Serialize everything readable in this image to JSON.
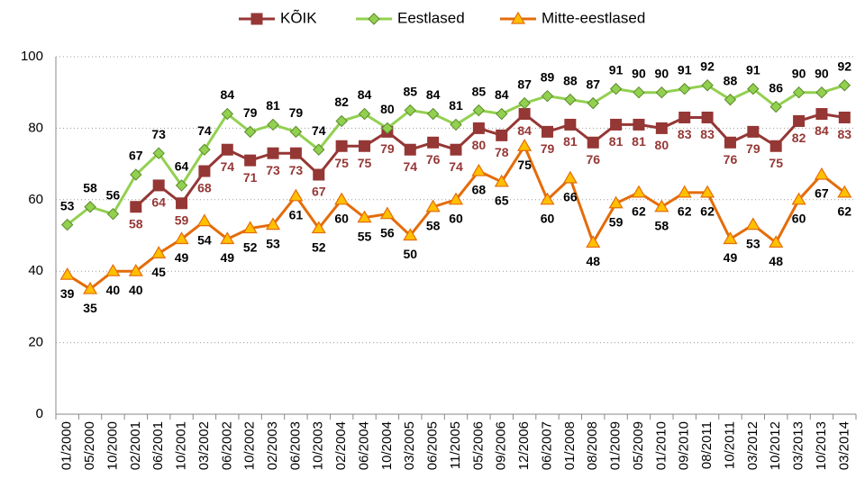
{
  "chart_data": {
    "type": "line",
    "categories": [
      "01/2000",
      "05/2000",
      "10/2000",
      "02/2001",
      "06/2001",
      "10/2001",
      "03/2002",
      "06/2002",
      "10/2002",
      "02/2003",
      "06/2003",
      "10/2003",
      "02/2004",
      "06/2004",
      "10/2004",
      "03/2005",
      "06/2005",
      "11/2005",
      "05/2006",
      "09/2006",
      "12/2006",
      "06/2007",
      "01/2008",
      "08/2008",
      "01/2009",
      "05/2009",
      "01/2010",
      "09/2010",
      "08/2011",
      "10/2011",
      "03/2012",
      "10/2012",
      "03/2013",
      "10/2013",
      "03/2014"
    ],
    "series": [
      {
        "name": "KÕIK",
        "color": "#953735",
        "marker": "square",
        "values": [
          null,
          null,
          null,
          58,
          64,
          59,
          68,
          74,
          71,
          73,
          73,
          67,
          75,
          75,
          79,
          74,
          76,
          74,
          80,
          78,
          84,
          79,
          81,
          76,
          81,
          81,
          80,
          83,
          83,
          76,
          79,
          75,
          82,
          84,
          83
        ]
      },
      {
        "name": "Eestlased",
        "color": "#92d050",
        "marker": "diamond",
        "values": [
          53,
          58,
          56,
          67,
          73,
          64,
          74,
          84,
          79,
          81,
          79,
          74,
          82,
          84,
          80,
          85,
          84,
          81,
          85,
          84,
          87,
          89,
          88,
          87,
          91,
          90,
          90,
          91,
          92,
          88,
          91,
          86,
          90,
          90,
          92
        ]
      },
      {
        "name": "Mitte-eestlased",
        "color": "#e46c0a",
        "marker": "triangle",
        "values": [
          39,
          35,
          40,
          40,
          45,
          49,
          54,
          49,
          52,
          53,
          61,
          52,
          60,
          55,
          56,
          50,
          58,
          60,
          68,
          65,
          75,
          60,
          66,
          48,
          59,
          62,
          58,
          62,
          62,
          49,
          53,
          48,
          60,
          67,
          62
        ]
      }
    ],
    "ylim": [
      0,
      100
    ],
    "yticks": [
      0,
      20,
      40,
      60,
      80,
      100
    ],
    "grid": true,
    "legend": "top"
  }
}
